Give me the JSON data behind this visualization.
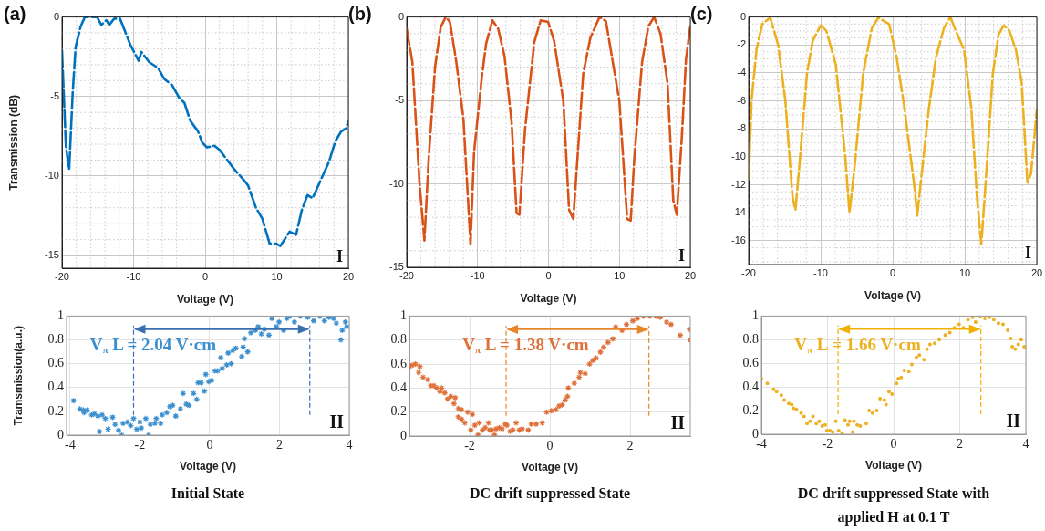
{
  "chart_data": [
    {
      "type": "line",
      "title": "(a)",
      "xlabel": "Voltage (V)",
      "ylabel": "Transmission (dB)",
      "color": "#0072bd",
      "line_style": "dashed",
      "grid": true,
      "xlim": [
        -20,
        20
      ],
      "xticks": [
        -20,
        -10,
        0,
        10,
        20
      ],
      "ylim": [
        -15.8,
        0
      ],
      "yticks": [
        -15,
        -10,
        -5,
        0
      ],
      "annotations": [
        "I"
      ],
      "x": [
        -20,
        -19.45,
        -19,
        -18.5,
        -18.1,
        -17.4,
        -16.8,
        -15.1,
        -14.5,
        -13.8,
        -13.4,
        -12.7,
        -11.9,
        -10.4,
        -9.3,
        -8.9,
        -7.8,
        -6.6,
        -5.7,
        -4.6,
        -3.6,
        -2.9,
        -2.1,
        -1,
        -0.4,
        0.25,
        1.3,
        2,
        4.1,
        5.4,
        6,
        7.1,
        8,
        9,
        9.9,
        10.5,
        11.8,
        12.7,
        13.5,
        14.3,
        15,
        16.5,
        17.3,
        18.2,
        19,
        19.7,
        20
      ],
      "values": [
        -2.1,
        -8.2,
        -9.6,
        -4.7,
        -1.9,
        -0.6,
        0,
        0,
        -0.5,
        -0.2,
        -0.5,
        -0.1,
        -0.1,
        -1.8,
        -2.75,
        -2.2,
        -2.85,
        -3.2,
        -3.9,
        -4.3,
        -5.1,
        -5.4,
        -6.5,
        -7.2,
        -7.9,
        -8.2,
        -8.1,
        -8.35,
        -9.6,
        -10.25,
        -10.6,
        -12,
        -12.7,
        -14.25,
        -14.25,
        -14.4,
        -13.5,
        -13.7,
        -12.15,
        -11.2,
        -11.4,
        -9.9,
        -9.1,
        -7.8,
        -7.2,
        -7,
        -6.55
      ]
    },
    {
      "type": "line",
      "title": "(b)",
      "xlabel": "Voltage (V)",
      "color": "#d95319",
      "line_style": "dashed",
      "grid": true,
      "xlim": [
        -20,
        20
      ],
      "xticks": [
        -20,
        -10,
        0,
        10,
        20
      ],
      "ylim": [
        -15,
        0
      ],
      "yticks": [
        -15,
        -10,
        -5,
        0
      ],
      "annotations": [
        "I"
      ],
      "x": [
        -20,
        -19.2,
        -18.2,
        -17.5,
        -16.9,
        -16,
        -15.2,
        -14.5,
        -13.9,
        -13,
        -12,
        -11,
        -10.5,
        -9.4,
        -8.8,
        -7.9,
        -7.1,
        -6.2,
        -5.2,
        -4.5,
        -4.1,
        -3.3,
        -2,
        -1.1,
        -0.05,
        0.8,
        2.1,
        2.9,
        3.5,
        4,
        4.9,
        5.9,
        7.2,
        8.1,
        10,
        11.1,
        11.6,
        12.1,
        13.2,
        14.1,
        14.9,
        15.8,
        16.8,
        17.6,
        18.1,
        18.8,
        19.4,
        20
      ],
      "values": [
        -0.7,
        -2.7,
        -9.9,
        -13.4,
        -8.5,
        -3,
        -0.6,
        0,
        -0.3,
        -2.7,
        -6.1,
        -13.6,
        -8.1,
        -3.6,
        -1.6,
        -0.2,
        -0.7,
        -2.35,
        -6.3,
        -11.75,
        -11.85,
        -6.7,
        -1.5,
        -0.2,
        -0.3,
        -1.45,
        -5.05,
        -11.55,
        -12.1,
        -9,
        -3.4,
        -1.25,
        0,
        -0.25,
        -5.05,
        -12.1,
        -12.2,
        -8.5,
        -2.7,
        -0.55,
        0,
        -1,
        -4,
        -11,
        -11.85,
        -7.25,
        -2.5,
        -0.55
      ]
    },
    {
      "type": "line",
      "title": "(c)",
      "xlabel": "Voltage (V)",
      "color": "#edb120",
      "line_style": "dashed",
      "grid": true,
      "xlim": [
        -20,
        20
      ],
      "xticks": [
        -20,
        -10,
        0,
        10,
        20
      ],
      "ylim": [
        -17.7,
        0
      ],
      "yticks": [
        -16,
        -14,
        -12,
        -10,
        -8,
        -6,
        -4,
        -2,
        0
      ],
      "annotations": [
        "I"
      ],
      "x": [
        -20,
        -19.6,
        -18.9,
        -18.1,
        -17,
        -15.9,
        -14.9,
        -13.9,
        -13.5,
        -12.9,
        -11.9,
        -11.1,
        -10,
        -9.2,
        -7.9,
        -6.6,
        -6,
        -5.3,
        -4.1,
        -2.9,
        -2,
        -1.2,
        -0.5,
        0.5,
        1.6,
        3.1,
        3.4,
        3.9,
        5,
        6,
        7.1,
        8,
        8.8,
        9.9,
        10.9,
        11.7,
        12.3,
        12.9,
        13.9,
        14.7,
        15.4,
        16.2,
        17.1,
        17.9,
        18.7,
        19.2,
        20
      ],
      "values": [
        -11.6,
        -6,
        -2.3,
        -0.5,
        -0.05,
        -2,
        -6,
        -12.9,
        -13.8,
        -10.3,
        -4.05,
        -1.7,
        -0.6,
        -1,
        -3.4,
        -9.9,
        -14,
        -10.75,
        -4.05,
        -0.8,
        -0.05,
        -0.3,
        -0.5,
        -2.75,
        -6.4,
        -12.5,
        -14.2,
        -11.8,
        -6.65,
        -2.9,
        -0.8,
        0,
        -1.05,
        -2.35,
        -6.45,
        -12.9,
        -16.25,
        -11.85,
        -4.05,
        -1.25,
        -0.6,
        -1,
        -2.35,
        -4.7,
        -11.85,
        -11.2,
        -6.65
      ]
    },
    {
      "type": "scatter",
      "title": "Initial State",
      "xlabel": "Voltage (V)",
      "ylabel": "Tramsmission(a.u.)",
      "color": "#3a8fd0",
      "marker": "cross",
      "grid": true,
      "xlim": [
        -4.1,
        4
      ],
      "xticks": [
        -4,
        -2,
        0,
        2,
        4
      ],
      "ylim": [
        0,
        1
      ],
      "yticks": [
        0,
        0.2,
        0.4,
        0.6,
        0.8,
        1
      ],
      "ref_lines": [
        {
          "axis": "x",
          "value": -2.18,
          "color": "#3a70b0",
          "line_style": "dashed"
        },
        {
          "axis": "x",
          "value": 2.87,
          "color": "#3a70b0",
          "line_style": "dashed"
        }
      ],
      "annotations": [
        "V$_{π}$ L = 2.04 V·cm",
        "II"
      ],
      "x": [
        -3.9,
        -3.72,
        -3.62,
        -3.51,
        -3.6,
        -3.38,
        -3.3,
        -3.2,
        -3.16,
        -3.08,
        -2.99,
        -2.91,
        -2.78,
        -2.71,
        -2.61,
        -2.52,
        -2.48,
        -2.35,
        -2.26,
        -2.18,
        -2.09,
        -2,
        -1.96,
        -1.83,
        -1.75,
        -1.7,
        -1.57,
        -1.53,
        -1.4,
        -1.36,
        -1.23,
        -1.14,
        -1.06,
        -0.97,
        -0.84,
        -0.76,
        -0.67,
        -0.59,
        -0.46,
        -0.37,
        -0.33,
        -0.24,
        -0.15,
        -0.11,
        -0.03,
        0.06,
        0.15,
        0.23,
        0.32,
        0.36,
        0.49,
        0.53,
        0.62,
        0.66,
        0.75,
        0.92,
        0.96,
        1,
        1.09,
        1.18,
        1.31,
        1.39,
        1.48,
        1.57,
        1.7,
        1.78,
        1.91,
        1.99,
        2.12,
        2.21,
        2.3,
        2.43,
        2.6,
        2.81,
        2.98,
        3.16,
        3.29,
        3.42,
        3.55,
        3.63,
        3.76,
        3.8,
        3.89,
        3.93
      ],
      "values": [
        0.29,
        0.22,
        0.21,
        0.21,
        0.19,
        0.17,
        0.18,
        0.16,
        0.03,
        0.17,
        0.14,
        0.05,
        0.15,
        0.09,
        0.04,
        0,
        0.1,
        0.11,
        0.08,
        0.14,
        0.05,
        0.11,
        0.06,
        0.14,
        0,
        0.09,
        0.1,
        0.14,
        0.1,
        0.17,
        0.19,
        0.24,
        0.25,
        0.16,
        0.22,
        0.35,
        0.26,
        0.25,
        0.35,
        0.3,
        0.44,
        0.44,
        0.37,
        0.51,
        0.45,
        0.46,
        0.54,
        0.54,
        0.65,
        0.56,
        0.59,
        0.69,
        0.6,
        0.71,
        0.73,
        0.66,
        0.74,
        0.81,
        0.7,
        0.86,
        0.88,
        0.91,
        0.85,
        0.89,
        0.84,
        0.98,
        0.91,
        0.95,
        0.88,
        0.98,
        1,
        0.95,
        1,
        0.99,
        0.96,
        1,
        0.96,
        0.99,
        0.98,
        0.94,
        0.8,
        0.88,
        0.95,
        0.91
      ]
    },
    {
      "type": "scatter",
      "title": "DC drift suppressed State",
      "xlabel": "Voltage (V)",
      "color": "#e0703a",
      "marker": "cross",
      "grid": true,
      "xlim": [
        -3.5,
        3.5
      ],
      "xticks": [
        -2,
        0,
        2
      ],
      "ylim": [
        0,
        1
      ],
      "yticks": [
        0,
        0.2,
        0.4,
        0.6,
        0.8,
        1
      ],
      "ref_lines": [
        {
          "axis": "x",
          "value": -1.09,
          "color": "#e8842a",
          "line_style": "dashed"
        },
        {
          "axis": "x",
          "value": 2.47,
          "color": "#e8842a",
          "line_style": "dashed"
        }
      ],
      "annotations": [
        "V$_{π}$ L = 1.38 V·cm",
        "II"
      ],
      "x": [
        -3.5,
        -3.43,
        -3.35,
        -3.24,
        -3.27,
        -3.16,
        -3.04,
        -2.97,
        -2.89,
        -2.82,
        -2.74,
        -2.7,
        -2.62,
        -2.55,
        -2.47,
        -2.39,
        -2.36,
        -2.28,
        -2.2,
        -2.28,
        -2.2,
        -2.12,
        -2.05,
        -1.97,
        -1.93,
        -1.87,
        -1.79,
        -1.76,
        -1.68,
        -1.61,
        -1.53,
        -1.5,
        -1.45,
        -1.38,
        -1.34,
        -1.26,
        -1.19,
        -1.11,
        -1.07,
        -0.99,
        -0.92,
        -0.84,
        -0.76,
        -0.69,
        -0.54,
        -0.46,
        -0.34,
        -0.19,
        -0.08,
        0.04,
        0.15,
        0.23,
        0.31,
        0.38,
        0.44,
        0.46,
        0.61,
        0.73,
        0.76,
        0.88,
        0.99,
        1.07,
        1.15,
        1.26,
        1.34,
        1.45,
        1.57,
        1.64,
        1.8,
        1.91,
        2.07,
        2.18,
        2.33,
        2.49,
        2.64,
        2.75,
        2.91,
        3.02,
        3.25,
        3.48,
        3.5
      ],
      "values": [
        0.58,
        0.59,
        0.6,
        0.58,
        0.53,
        0.49,
        0.47,
        0.42,
        0.42,
        0.4,
        0.37,
        0.4,
        0.36,
        0.31,
        0.33,
        0.27,
        0.32,
        0.23,
        0.22,
        0.16,
        0.14,
        0.11,
        0.2,
        0.05,
        0.18,
        0.09,
        0.01,
        0.11,
        0.05,
        0.07,
        0.11,
        0.05,
        0.05,
        0.01,
        0.06,
        0.07,
        0.06,
        0.1,
        0.09,
        0.04,
        0.05,
        0.11,
        0.05,
        0.06,
        0.05,
        0.1,
        0.1,
        0.11,
        0.2,
        0.21,
        0.22,
        0.25,
        0.26,
        0.3,
        0.33,
        0.4,
        0.44,
        0.49,
        0.53,
        0.52,
        0.6,
        0.63,
        0.65,
        0.7,
        0.74,
        0.78,
        0.81,
        0.91,
        0.88,
        0.93,
        0.96,
        0.98,
        1,
        1,
        1,
        0.99,
        0.95,
        0.93,
        0.84,
        0.89,
        0.8
      ]
    },
    {
      "type": "scatter",
      "title": "DC drift suppressed State with applied H at 0.1 T",
      "xlabel": "Voltage (V)",
      "color": "#edb120",
      "marker": "circle",
      "grid": true,
      "xlim": [
        -4,
        4
      ],
      "xticks": [
        -4,
        -2,
        0,
        2,
        4
      ],
      "ylim": [
        0,
        1
      ],
      "yticks": [
        0,
        0.2,
        0.4,
        0.6,
        0.8,
        1
      ],
      "ref_lines": [
        {
          "axis": "x",
          "value": -1.68,
          "color": "#f0b000",
          "line_style": "dashed"
        },
        {
          "axis": "x",
          "value": 2.64,
          "color": "#f0b000",
          "line_style": "dashed"
        }
      ],
      "annotations": [
        "V$_{π}$ L = 1.66 V·cm",
        "II"
      ],
      "x": [
        -4,
        -3.82,
        -3.63,
        -3.54,
        -3.4,
        -3.31,
        -3.17,
        -3.08,
        -3.03,
        -2.94,
        -2.8,
        -2.71,
        -2.62,
        -2.53,
        -2.44,
        -2.34,
        -2.25,
        -2.16,
        -2.07,
        -2.02,
        -1.93,
        -1.84,
        -1.75,
        -1.66,
        -1.56,
        -1.47,
        -1.38,
        -1.33,
        -1.24,
        -1.2,
        -1.1,
        -1.01,
        -0.83,
        -0.74,
        -0.64,
        -0.51,
        -0.41,
        -0.28,
        -0.23,
        -0.14,
        -0.05,
        0.09,
        0.14,
        0.23,
        0.32,
        0.46,
        0.55,
        0.69,
        0.78,
        0.92,
        1.01,
        1.1,
        1.24,
        1.38,
        1.56,
        1.7,
        1.84,
        1.98,
        2.11,
        2.25,
        2.39,
        2.48,
        2.62,
        2.76,
        2.9,
        3.03,
        3.17,
        3.31,
        3.45,
        3.54,
        3.59,
        3.68,
        3.77,
        3.86,
        3.95
      ],
      "values": [
        0.47,
        0.43,
        0.38,
        0.36,
        0.33,
        0.29,
        0.26,
        0.25,
        0.22,
        0.21,
        0.18,
        0.15,
        0.09,
        0.11,
        0.15,
        0.09,
        0.11,
        0.07,
        0.08,
        0.03,
        0.03,
        0.02,
        0.11,
        0.03,
        0.01,
        0.12,
        0.08,
        0.11,
        0.02,
        0.11,
        0.08,
        0.07,
        0.09,
        0.2,
        0.18,
        0.2,
        0.3,
        0.29,
        0.25,
        0.36,
        0.34,
        0.43,
        0.47,
        0.48,
        0.54,
        0.53,
        0.59,
        0.65,
        0.67,
        0.63,
        0.72,
        0.76,
        0.77,
        0.8,
        0.84,
        0.86,
        0.9,
        0.93,
        0.9,
        0.97,
        0.99,
        0.95,
        1,
        0.98,
        0.99,
        0.97,
        0.94,
        0.93,
        0.88,
        0.81,
        0.74,
        0.72,
        0.76,
        0.8,
        0.74
      ]
    }
  ]
}
